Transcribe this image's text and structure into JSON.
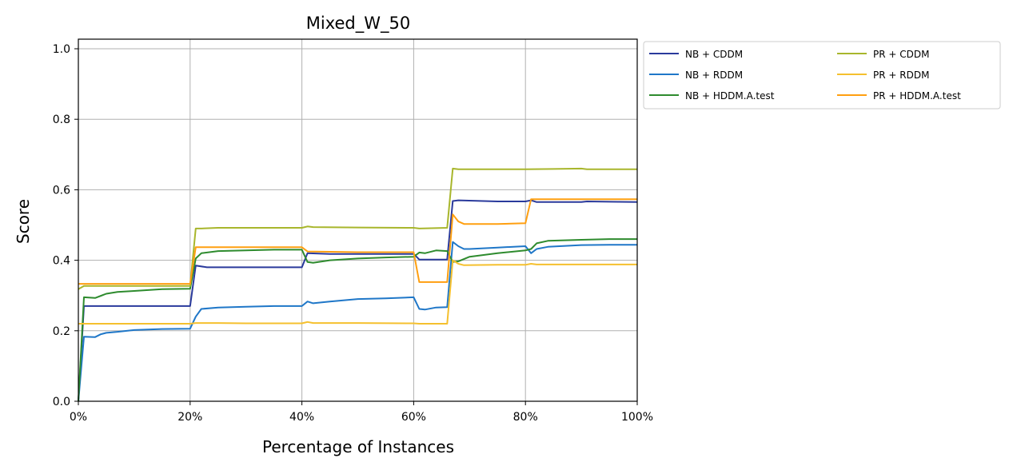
{
  "chart_data": {
    "type": "line",
    "title": "Mixed_W_50",
    "xlabel": "Percentage of Instances",
    "ylabel": "Score",
    "xlim": [
      0,
      100
    ],
    "ylim": [
      0,
      1.0
    ],
    "grid": true,
    "legend_position": "outside-top-right",
    "legend_columns": 2,
    "x_tick_labels": [
      "0%",
      "20%",
      "40%",
      "60%",
      "80%",
      "100%"
    ],
    "y_tick_labels": [
      "0.0",
      "0.2",
      "0.4",
      "0.6",
      "0.8",
      "1.0"
    ],
    "series": [
      {
        "name": "NB + CDDM",
        "color": "#2a3a9c",
        "points": [
          [
            0,
            0
          ],
          [
            1,
            0.27
          ],
          [
            5,
            0.27
          ],
          [
            10,
            0.27
          ],
          [
            15,
            0.27
          ],
          [
            20,
            0.27
          ],
          [
            21,
            0.385
          ],
          [
            23,
            0.38
          ],
          [
            30,
            0.38
          ],
          [
            35,
            0.38
          ],
          [
            40,
            0.38
          ],
          [
            41,
            0.42
          ],
          [
            45,
            0.418
          ],
          [
            50,
            0.418
          ],
          [
            55,
            0.418
          ],
          [
            60,
            0.418
          ],
          [
            61,
            0.402
          ],
          [
            66,
            0.402
          ],
          [
            67,
            0.568
          ],
          [
            68,
            0.57
          ],
          [
            75,
            0.567
          ],
          [
            80,
            0.567
          ],
          [
            81,
            0.57
          ],
          [
            82,
            0.565
          ],
          [
            90,
            0.565
          ],
          [
            91,
            0.567
          ],
          [
            100,
            0.565
          ]
        ]
      },
      {
        "name": "NB + RDDM",
        "color": "#1f77c8",
        "points": [
          [
            0,
            0
          ],
          [
            1,
            0.183
          ],
          [
            3,
            0.182
          ],
          [
            4,
            0.19
          ],
          [
            5,
            0.194
          ],
          [
            7,
            0.197
          ],
          [
            10,
            0.202
          ],
          [
            15,
            0.205
          ],
          [
            20,
            0.206
          ],
          [
            21,
            0.24
          ],
          [
            22,
            0.262
          ],
          [
            25,
            0.266
          ],
          [
            30,
            0.268
          ],
          [
            35,
            0.27
          ],
          [
            40,
            0.27
          ],
          [
            41,
            0.283
          ],
          [
            42,
            0.278
          ],
          [
            45,
            0.283
          ],
          [
            50,
            0.29
          ],
          [
            55,
            0.292
          ],
          [
            60,
            0.295
          ],
          [
            61,
            0.262
          ],
          [
            62,
            0.26
          ],
          [
            64,
            0.266
          ],
          [
            66,
            0.267
          ],
          [
            67,
            0.452
          ],
          [
            68,
            0.44
          ],
          [
            69,
            0.432
          ],
          [
            70,
            0.432
          ],
          [
            75,
            0.436
          ],
          [
            80,
            0.44
          ],
          [
            81,
            0.42
          ],
          [
            82,
            0.432
          ],
          [
            84,
            0.438
          ],
          [
            90,
            0.443
          ],
          [
            95,
            0.444
          ],
          [
            100,
            0.444
          ]
        ]
      },
      {
        "name": "NB + HDDM.A.test",
        "color": "#2e8b2e",
        "points": [
          [
            0,
            0
          ],
          [
            1,
            0.295
          ],
          [
            3,
            0.293
          ],
          [
            5,
            0.305
          ],
          [
            7,
            0.31
          ],
          [
            10,
            0.313
          ],
          [
            15,
            0.318
          ],
          [
            20,
            0.319
          ],
          [
            21,
            0.405
          ],
          [
            22,
            0.42
          ],
          [
            25,
            0.426
          ],
          [
            30,
            0.428
          ],
          [
            35,
            0.43
          ],
          [
            40,
            0.43
          ],
          [
            41,
            0.395
          ],
          [
            42,
            0.393
          ],
          [
            45,
            0.4
          ],
          [
            50,
            0.405
          ],
          [
            55,
            0.408
          ],
          [
            60,
            0.41
          ],
          [
            61,
            0.422
          ],
          [
            62,
            0.42
          ],
          [
            64,
            0.428
          ],
          [
            66,
            0.426
          ],
          [
            67,
            0.395
          ],
          [
            68,
            0.397
          ],
          [
            70,
            0.41
          ],
          [
            75,
            0.42
          ],
          [
            80,
            0.428
          ],
          [
            81,
            0.432
          ],
          [
            82,
            0.448
          ],
          [
            84,
            0.455
          ],
          [
            90,
            0.458
          ],
          [
            95,
            0.46
          ],
          [
            100,
            0.46
          ]
        ]
      },
      {
        "name": "PR + CDDM",
        "color": "#a8b62c",
        "points": [
          [
            0,
            0.318
          ],
          [
            1,
            0.327
          ],
          [
            5,
            0.327
          ],
          [
            10,
            0.327
          ],
          [
            15,
            0.327
          ],
          [
            20,
            0.327
          ],
          [
            21,
            0.49
          ],
          [
            22,
            0.49
          ],
          [
            25,
            0.492
          ],
          [
            30,
            0.492
          ],
          [
            35,
            0.492
          ],
          [
            40,
            0.492
          ],
          [
            41,
            0.496
          ],
          [
            42,
            0.494
          ],
          [
            50,
            0.493
          ],
          [
            60,
            0.492
          ],
          [
            61,
            0.49
          ],
          [
            66,
            0.492
          ],
          [
            67,
            0.66
          ],
          [
            68,
            0.658
          ],
          [
            75,
            0.658
          ],
          [
            80,
            0.658
          ],
          [
            85,
            0.659
          ],
          [
            90,
            0.66
          ],
          [
            91,
            0.658
          ],
          [
            100,
            0.658
          ]
        ]
      },
      {
        "name": "PR + RDDM",
        "color": "#f5c02e",
        "points": [
          [
            0,
            0.22
          ],
          [
            1,
            0.22
          ],
          [
            5,
            0.22
          ],
          [
            10,
            0.22
          ],
          [
            15,
            0.22
          ],
          [
            20,
            0.22
          ],
          [
            21,
            0.222
          ],
          [
            25,
            0.222
          ],
          [
            30,
            0.221
          ],
          [
            35,
            0.221
          ],
          [
            40,
            0.221
          ],
          [
            41,
            0.225
          ],
          [
            42,
            0.222
          ],
          [
            50,
            0.222
          ],
          [
            60,
            0.221
          ],
          [
            61,
            0.22
          ],
          [
            66,
            0.22
          ],
          [
            67,
            0.4
          ],
          [
            68,
            0.39
          ],
          [
            69,
            0.386
          ],
          [
            75,
            0.387
          ],
          [
            80,
            0.387
          ],
          [
            81,
            0.39
          ],
          [
            82,
            0.388
          ],
          [
            90,
            0.388
          ],
          [
            100,
            0.388
          ]
        ]
      },
      {
        "name": "PR + HDDM.A.test",
        "color": "#ff9f10",
        "points": [
          [
            0,
            0.333
          ],
          [
            1,
            0.333
          ],
          [
            5,
            0.333
          ],
          [
            10,
            0.333
          ],
          [
            15,
            0.333
          ],
          [
            20,
            0.333
          ],
          [
            21,
            0.437
          ],
          [
            25,
            0.437
          ],
          [
            30,
            0.437
          ],
          [
            35,
            0.437
          ],
          [
            40,
            0.437
          ],
          [
            41,
            0.425
          ],
          [
            45,
            0.424
          ],
          [
            50,
            0.423
          ],
          [
            55,
            0.423
          ],
          [
            60,
            0.423
          ],
          [
            61,
            0.338
          ],
          [
            66,
            0.338
          ],
          [
            67,
            0.53
          ],
          [
            68,
            0.51
          ],
          [
            69,
            0.503
          ],
          [
            75,
            0.503
          ],
          [
            80,
            0.505
          ],
          [
            81,
            0.573
          ],
          [
            85,
            0.573
          ],
          [
            90,
            0.573
          ],
          [
            95,
            0.573
          ],
          [
            100,
            0.573
          ]
        ]
      }
    ]
  }
}
